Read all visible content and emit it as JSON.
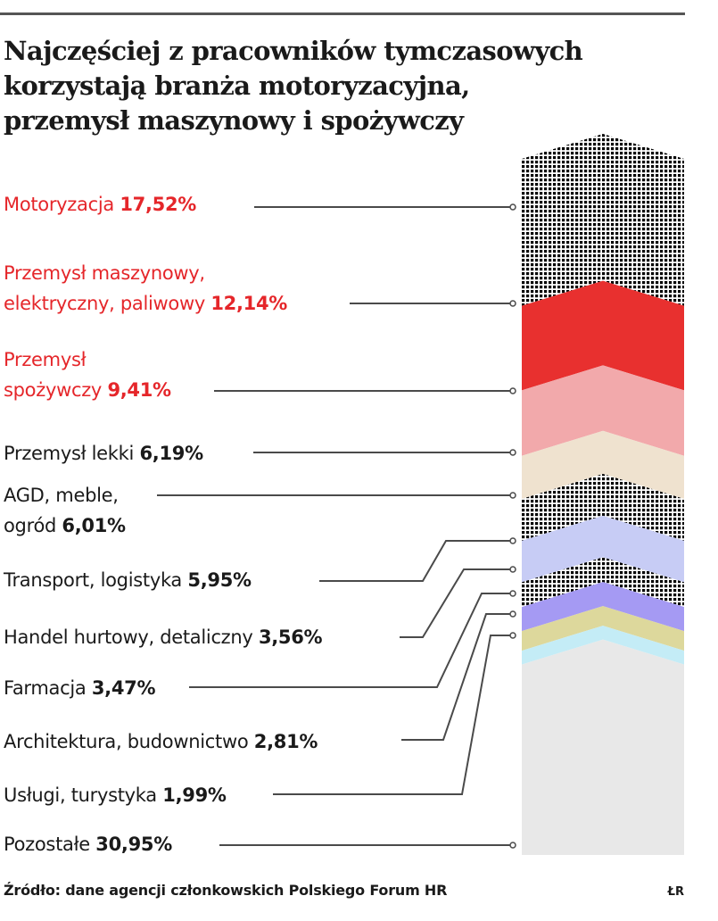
{
  "title_lines": [
    "Najczęściej z pracowników tymczasowych",
    "korzystają branża motoryzacyjna,",
    "przemysł maszynowy i spożywczy"
  ],
  "chart_data": {
    "type": "stacked-column",
    "series": [
      {
        "lines": [
          "Motoryzacja"
        ],
        "value": "17,52%",
        "num": 17.52,
        "color": "#e5262a",
        "pattern": "grid"
      },
      {
        "lines": [
          "Przemysł maszynowy,",
          "elektryczny, paliwowy"
        ],
        "value": "12,14%",
        "num": 12.14,
        "color": "#e8302f",
        "pattern": "solid"
      },
      {
        "lines": [
          "Przemysł",
          "spożywczy"
        ],
        "value": "9,41%",
        "num": 9.41,
        "color": "#f2a9ab",
        "pattern": "solid"
      },
      {
        "lines": [
          "Przemysł lekki"
        ],
        "value": "6,19%",
        "num": 6.19,
        "color": "#efe2cf",
        "pattern": "solid"
      },
      {
        "lines": [
          "AGD, meble,",
          "ogród"
        ],
        "value": "6,01%",
        "num": 6.01,
        "color": "#aab3ea",
        "pattern": "grid"
      },
      {
        "lines": [
          "Transport, logistyka"
        ],
        "value": "5,95%",
        "num": 5.95,
        "color": "#c7ccf5",
        "pattern": "solid"
      },
      {
        "lines": [
          "Handel hurtowy, detaliczny"
        ],
        "value": "3,56%",
        "num": 3.56,
        "color": "#3f5fe0",
        "pattern": "grid"
      },
      {
        "lines": [
          "Farmacja"
        ],
        "value": "3,47%",
        "num": 3.47,
        "color": "#a59af3",
        "pattern": "solid"
      },
      {
        "lines": [
          "Architektura, budownictwo"
        ],
        "value": "2,81%",
        "num": 2.81,
        "color": "#ddd89c",
        "pattern": "solid"
      },
      {
        "lines": [
          "Usługi, turystyka"
        ],
        "value": "1,99%",
        "num": 1.99,
        "color": "#c4ecf6",
        "pattern": "solid"
      },
      {
        "lines": [
          "Pozostałe"
        ],
        "value": "30,95%",
        "num": 30.95,
        "color": "#e8e8e8",
        "pattern": "solid"
      }
    ]
  },
  "source": "Źródło: dane agencji członkowskich Polskiego Forum HR",
  "author": "ŁR",
  "colors": {
    "highlight": "#e5262a",
    "text": "#1a1a1a",
    "leader": "#4a4a4a"
  }
}
